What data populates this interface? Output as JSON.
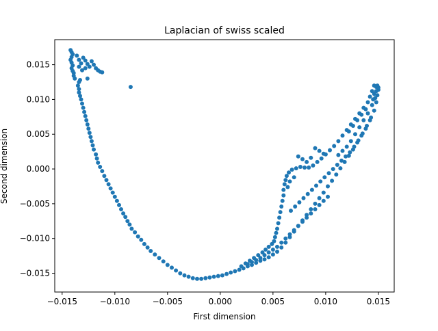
{
  "chart_data": {
    "type": "scatter",
    "title": "Laplacian of swiss scaled",
    "xlabel": "First dimension",
    "ylabel": "Second dimension",
    "xlim": [
      -0.0157,
      0.0165
    ],
    "ylim": [
      -0.0177,
      0.0186
    ],
    "xticks": [
      -0.015,
      -0.01,
      -0.005,
      0.0,
      0.005,
      0.01,
      0.015
    ],
    "xtick_labels": [
      "−0.015",
      "−0.010",
      "−0.005",
      "0.000",
      "0.005",
      "0.010",
      "0.015"
    ],
    "yticks": [
      -0.015,
      -0.01,
      -0.005,
      0.0,
      0.005,
      0.01,
      0.015
    ],
    "ytick_labels": [
      "−0.015",
      "−0.010",
      "−0.005",
      "0.000",
      "0.005",
      "0.010",
      "0.015"
    ],
    "grid": false,
    "legend": "none",
    "color": "#1f77b4",
    "points": [
      [
        -0.0142,
        0.0171
      ],
      [
        -0.0141,
        0.0168
      ],
      [
        -0.014,
        0.0165
      ],
      [
        -0.0141,
        0.0161
      ],
      [
        -0.0142,
        0.0157
      ],
      [
        -0.0141,
        0.0153
      ],
      [
        -0.014,
        0.0149
      ],
      [
        -0.0141,
        0.0145
      ],
      [
        -0.014,
        0.0141
      ],
      [
        -0.0139,
        0.0138
      ],
      [
        -0.0139,
        0.0134
      ],
      [
        -0.0138,
        0.013
      ],
      [
        -0.0136,
        0.0163
      ],
      [
        -0.0134,
        0.0157
      ],
      [
        -0.0132,
        0.0152
      ],
      [
        -0.013,
        0.016
      ],
      [
        -0.0128,
        0.0156
      ],
      [
        -0.0126,
        0.0151
      ],
      [
        -0.0124,
        0.0147
      ],
      [
        -0.0122,
        0.0155
      ],
      [
        -0.012,
        0.015
      ],
      [
        -0.0118,
        0.0145
      ],
      [
        -0.0116,
        0.0142
      ],
      [
        -0.0114,
        0.014
      ],
      [
        -0.0112,
        0.0139
      ],
      [
        -0.0128,
        0.0145
      ],
      [
        -0.0131,
        0.0142
      ],
      [
        -0.0134,
        0.0147
      ],
      [
        -0.0133,
        0.0128
      ],
      [
        -0.0134,
        0.0125
      ],
      [
        -0.0126,
        0.013
      ],
      [
        -0.0085,
        0.0118
      ],
      [
        -0.0135,
        0.012
      ],
      [
        -0.0134,
        0.0115
      ],
      [
        -0.0134,
        0.011
      ],
      [
        -0.0133,
        0.0105
      ],
      [
        -0.0132,
        0.01
      ],
      [
        -0.0131,
        0.0094
      ],
      [
        -0.013,
        0.0088
      ],
      [
        -0.0129,
        0.0082
      ],
      [
        -0.0128,
        0.0076
      ],
      [
        -0.0127,
        0.007
      ],
      [
        -0.0126,
        0.0064
      ],
      [
        -0.0125,
        0.0058
      ],
      [
        -0.0124,
        0.0052
      ],
      [
        -0.0123,
        0.0046
      ],
      [
        -0.0122,
        0.004
      ],
      [
        -0.0121,
        0.0034
      ],
      [
        -0.012,
        0.0028
      ],
      [
        -0.0118,
        0.0021
      ],
      [
        -0.0117,
        0.0015
      ],
      [
        -0.0116,
        0.0009
      ],
      [
        -0.0114,
        0.0003
      ],
      [
        -0.0112,
        -0.0003
      ],
      [
        -0.011,
        -0.001
      ],
      [
        -0.0108,
        -0.0016
      ],
      [
        -0.0106,
        -0.0022
      ],
      [
        -0.0104,
        -0.0028
      ],
      [
        -0.0102,
        -0.0034
      ],
      [
        -0.01,
        -0.004
      ],
      [
        -0.0098,
        -0.0046
      ],
      [
        -0.0096,
        -0.0052
      ],
      [
        -0.0094,
        -0.0058
      ],
      [
        -0.0092,
        -0.0064
      ],
      [
        -0.009,
        -0.0069
      ],
      [
        -0.0088,
        -0.0075
      ],
      [
        -0.0086,
        -0.008
      ],
      [
        -0.0084,
        -0.0086
      ],
      [
        -0.0081,
        -0.0091
      ],
      [
        -0.0078,
        -0.0097
      ],
      [
        -0.0075,
        -0.0102
      ],
      [
        -0.0072,
        -0.0108
      ],
      [
        -0.0069,
        -0.0113
      ],
      [
        -0.0066,
        -0.0118
      ],
      [
        -0.0062,
        -0.0123
      ],
      [
        -0.0058,
        -0.0128
      ],
      [
        -0.0054,
        -0.0133
      ],
      [
        -0.005,
        -0.0138
      ],
      [
        -0.0046,
        -0.0142
      ],
      [
        -0.0042,
        -0.0146
      ],
      [
        -0.0038,
        -0.015
      ],
      [
        -0.0034,
        -0.0153
      ],
      [
        -0.003,
        -0.0155
      ],
      [
        -0.0026,
        -0.0157
      ],
      [
        -0.0022,
        -0.0158
      ],
      [
        -0.0018,
        -0.0158
      ],
      [
        -0.0014,
        -0.0157
      ],
      [
        -0.001,
        -0.0156
      ],
      [
        -0.0006,
        -0.0155
      ],
      [
        -0.0002,
        -0.0154
      ],
      [
        0.0002,
        -0.0153
      ],
      [
        0.0006,
        -0.0151
      ],
      [
        0.001,
        -0.0149
      ],
      [
        0.0014,
        -0.0147
      ],
      [
        0.0018,
        -0.0145
      ],
      [
        0.0022,
        -0.0143
      ],
      [
        0.0026,
        -0.014
      ],
      [
        0.003,
        -0.0138
      ],
      [
        0.0034,
        -0.0135
      ],
      [
        0.0038,
        -0.0132
      ],
      [
        0.0042,
        -0.013
      ],
      [
        0.0046,
        -0.0127
      ],
      [
        0.005,
        -0.0123
      ],
      [
        0.0054,
        -0.0119
      ],
      [
        0.0058,
        -0.0113
      ],
      [
        0.0062,
        -0.0106
      ],
      [
        0.0066,
        -0.0098
      ],
      [
        0.007,
        -0.009
      ],
      [
        0.0074,
        -0.0082
      ],
      [
        0.0078,
        -0.0074
      ],
      [
        0.0082,
        -0.0066
      ],
      [
        0.0086,
        -0.0058
      ],
      [
        0.009,
        -0.005
      ],
      [
        0.0094,
        -0.0042
      ],
      [
        0.0098,
        -0.0034
      ],
      [
        0.0102,
        -0.0025
      ],
      [
        0.0106,
        -0.0017
      ],
      [
        0.011,
        -0.0008
      ],
      [
        0.0114,
        0.0001
      ],
      [
        0.0118,
        0.001
      ],
      [
        0.0122,
        0.0019
      ],
      [
        0.0126,
        0.0028
      ],
      [
        0.013,
        0.0038
      ],
      [
        0.0134,
        0.0048
      ],
      [
        0.0138,
        0.0058
      ],
      [
        0.0142,
        0.007
      ],
      [
        0.0146,
        0.0084
      ],
      [
        0.0148,
        0.0096
      ],
      [
        0.0149,
        0.0106
      ],
      [
        0.015,
        0.0114
      ],
      [
        0.0148,
        0.0118
      ],
      [
        0.0146,
        0.012
      ],
      [
        0.0144,
        0.0112
      ],
      [
        0.0142,
        0.0104
      ],
      [
        0.014,
        0.0096
      ],
      [
        0.0136,
        0.0088
      ],
      [
        0.0132,
        0.008
      ],
      [
        0.0128,
        0.0072
      ],
      [
        0.0124,
        0.0064
      ],
      [
        0.012,
        0.0056
      ],
      [
        0.0116,
        0.0048
      ],
      [
        0.0112,
        0.004
      ],
      [
        0.0108,
        0.0033
      ],
      [
        0.0104,
        0.0027
      ],
      [
        0.01,
        0.0021
      ],
      [
        0.0096,
        0.0015
      ],
      [
        0.0092,
        0.001
      ],
      [
        0.0088,
        0.0005
      ],
      [
        0.0084,
        0.0002
      ],
      [
        0.008,
        0.0002
      ],
      [
        0.0076,
        0.0003
      ],
      [
        0.0072,
        0.0001
      ],
      [
        0.0068,
        -0.0001
      ],
      [
        0.0065,
        -0.0005
      ],
      [
        0.0063,
        -0.001
      ],
      [
        0.0062,
        -0.0016
      ],
      [
        0.0061,
        -0.0022
      ],
      [
        0.006,
        -0.003
      ],
      [
        0.006,
        -0.0038
      ],
      [
        0.0059,
        -0.0046
      ],
      [
        0.0058,
        -0.0054
      ],
      [
        0.0057,
        -0.0062
      ],
      [
        0.0056,
        -0.007
      ],
      [
        0.0055,
        -0.0078
      ],
      [
        0.0054,
        -0.0086
      ],
      [
        0.0053,
        -0.0092
      ],
      [
        0.0052,
        -0.0098
      ],
      [
        0.0051,
        -0.0104
      ],
      [
        0.0049,
        -0.0108
      ],
      [
        0.0046,
        -0.0112
      ],
      [
        0.0043,
        -0.0116
      ],
      [
        0.004,
        -0.012
      ],
      [
        0.0036,
        -0.0124
      ],
      [
        0.0032,
        -0.0128
      ],
      [
        0.0028,
        -0.0132
      ],
      [
        0.0024,
        -0.0136
      ],
      [
        0.002,
        -0.014
      ],
      [
        0.0067,
        -0.006
      ],
      [
        0.0071,
        -0.0054
      ],
      [
        0.0075,
        -0.0048
      ],
      [
        0.0079,
        -0.0042
      ],
      [
        0.0083,
        -0.0036
      ],
      [
        0.0087,
        -0.003
      ],
      [
        0.0091,
        -0.0024
      ],
      [
        0.0095,
        -0.0018
      ],
      [
        0.0099,
        -0.0012
      ],
      [
        0.0103,
        -0.0006
      ],
      [
        0.0107,
        0.0
      ],
      [
        0.0111,
        0.0006
      ],
      [
        0.0115,
        0.0012
      ],
      [
        0.0119,
        0.0018
      ],
      [
        0.0123,
        0.0024
      ],
      [
        0.0127,
        0.0032
      ],
      [
        0.0131,
        0.0041
      ],
      [
        0.0135,
        0.0051
      ],
      [
        0.0139,
        0.0062
      ],
      [
        0.0143,
        0.0074
      ],
      [
        0.0098,
        0.0022
      ],
      [
        0.0094,
        0.0026
      ],
      [
        0.009,
        0.003
      ],
      [
        0.0086,
        0.0016
      ],
      [
        0.0082,
        0.001
      ],
      [
        0.0078,
        0.0014
      ],
      [
        0.0074,
        0.0018
      ],
      [
        0.007,
        -0.0012
      ],
      [
        0.0066,
        -0.0018
      ],
      [
        0.0064,
        -0.0026
      ],
      [
        0.0112,
        0.002
      ],
      [
        0.0116,
        0.0026
      ],
      [
        0.012,
        0.0032
      ],
      [
        0.0124,
        0.004
      ],
      [
        0.0128,
        0.005
      ],
      [
        0.0132,
        0.006
      ],
      [
        0.0136,
        0.007
      ],
      [
        0.014,
        0.008
      ],
      [
        0.0144,
        0.0092
      ],
      [
        0.0147,
        0.0102
      ],
      [
        0.0146,
        0.0108
      ],
      [
        0.0148,
        0.0112
      ],
      [
        0.015,
        0.0117
      ],
      [
        0.0149,
        0.012
      ],
      [
        0.0145,
        0.01
      ],
      [
        0.0138,
        0.0086
      ],
      [
        0.0134,
        0.0078
      ],
      [
        0.013,
        0.007
      ],
      [
        0.0126,
        0.0062
      ],
      [
        0.0122,
        0.0054
      ],
      [
        0.0102,
        -0.004
      ],
      [
        0.0098,
        -0.0046
      ],
      [
        0.0094,
        -0.0052
      ],
      [
        0.009,
        -0.0058
      ],
      [
        0.0086,
        -0.0064
      ],
      [
        0.0082,
        -0.007
      ],
      [
        0.0078,
        -0.0076
      ],
      [
        0.0074,
        -0.0082
      ],
      [
        0.007,
        -0.0088
      ],
      [
        0.0066,
        -0.0094
      ],
      [
        0.0062,
        -0.01
      ],
      [
        0.0058,
        -0.0106
      ],
      [
        0.0054,
        -0.0112
      ],
      [
        0.005,
        -0.0116
      ],
      [
        0.0046,
        -0.012
      ],
      [
        0.0042,
        -0.0124
      ],
      [
        0.0038,
        -0.0128
      ],
      [
        0.0034,
        -0.0131
      ],
      [
        0.003,
        -0.0134
      ],
      [
        0.0026,
        -0.0137
      ]
    ]
  }
}
